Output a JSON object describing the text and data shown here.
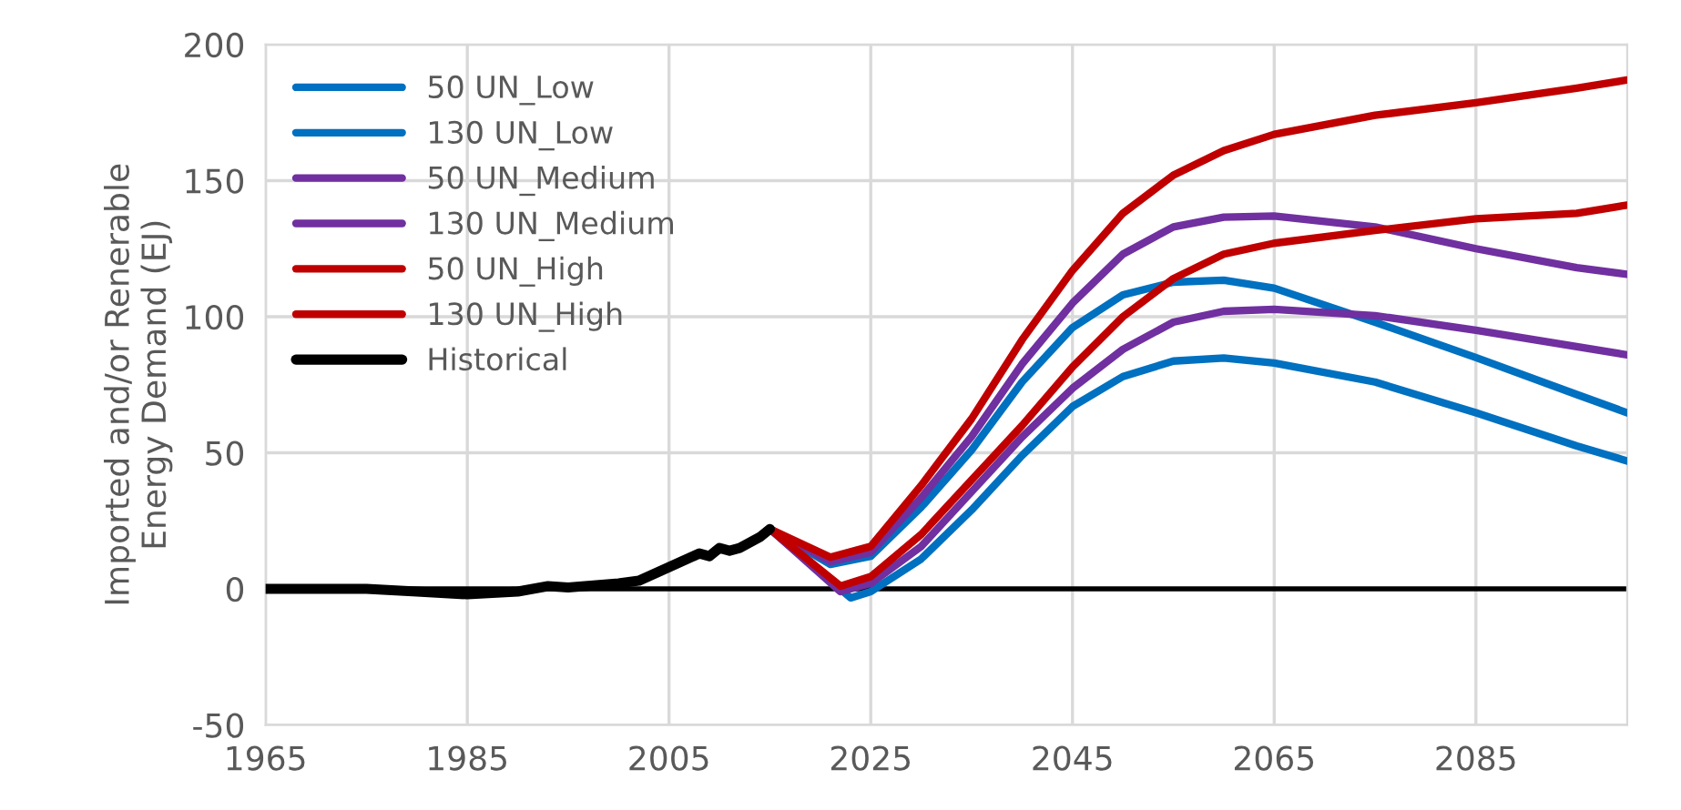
{
  "chart_data": {
    "type": "line",
    "ylabel": "Imported and/or Renerable\nEnergy Demand (EJ)",
    "xlim": [
      1965,
      2100
    ],
    "xticks": [
      1965,
      1985,
      2005,
      2025,
      2045,
      2065,
      2085
    ],
    "ylim": [
      -50,
      200
    ],
    "yticks": [
      -50,
      0,
      50,
      100,
      150,
      200
    ],
    "grid": true,
    "legend": "top left",
    "marker": "none",
    "line_style": "solid",
    "ref_lines": [
      {
        "axis": "y",
        "value": 0,
        "color": "#000000"
      }
    ],
    "series": [
      {
        "name": "50 UN_Low",
        "color": "#0070c0",
        "x": [
          2015,
          2021,
          2025,
          2030,
          2035,
          2040,
          2045,
          2050,
          2055,
          2060,
          2065,
          2075,
          2085,
          2095,
          2100
        ],
        "values": [
          22,
          9,
          12,
          30,
          51,
          76,
          96,
          108,
          112.7,
          113.4,
          110.5,
          98,
          85,
          71.4,
          64.7
        ]
      },
      {
        "name": "130 UN_Low",
        "color": "#0070c0",
        "x": [
          2015,
          2023,
          2025,
          2030,
          2035,
          2040,
          2045,
          2050,
          2055,
          2060,
          2065,
          2075,
          2085,
          2095,
          2100
        ],
        "values": [
          22,
          -3.3,
          -1,
          11,
          29,
          49,
          67,
          78,
          83.7,
          84.8,
          83,
          76,
          64.7,
          52.5,
          47
        ]
      },
      {
        "name": "50 UN_Medium",
        "color": "#7030a0",
        "x": [
          2015,
          2021,
          2025,
          2030,
          2035,
          2040,
          2045,
          2050,
          2055,
          2060,
          2065,
          2075,
          2085,
          2095,
          2100
        ],
        "values": [
          22,
          10,
          13.4,
          33.5,
          56,
          82.6,
          105,
          123,
          133,
          136.6,
          137,
          133,
          125,
          118,
          115.6
        ]
      },
      {
        "name": "130 UN_Medium",
        "color": "#7030a0",
        "x": [
          2015,
          2022,
          2025,
          2030,
          2035,
          2040,
          2045,
          2050,
          2055,
          2060,
          2065,
          2075,
          2085,
          2095,
          2100
        ],
        "values": [
          22,
          -1,
          2,
          15.6,
          35.7,
          55.8,
          73.7,
          88,
          98,
          102,
          102.7,
          100.4,
          95,
          89,
          86
        ]
      },
      {
        "name": "50 UN_High",
        "color": "#c00000",
        "x": [
          2015,
          2021,
          2025,
          2030,
          2035,
          2040,
          2045,
          2050,
          2055,
          2060,
          2065,
          2075,
          2085,
          2095,
          2100
        ],
        "values": [
          22,
          11.6,
          15.6,
          38,
          62.5,
          91.5,
          117,
          138,
          152,
          161,
          167,
          174,
          178.6,
          184,
          187
        ]
      },
      {
        "name": "130 UN_High",
        "color": "#c00000",
        "x": [
          2015,
          2022,
          2025,
          2030,
          2035,
          2040,
          2045,
          2050,
          2055,
          2060,
          2065,
          2075,
          2085,
          2095,
          2100
        ],
        "values": [
          22,
          1,
          4.5,
          20,
          40,
          60,
          81.5,
          100,
          114,
          123,
          127,
          131.7,
          136,
          138,
          141
        ]
      },
      {
        "name": "Historical",
        "color": "#000000",
        "x": [
          1965,
          1970,
          1975,
          1980,
          1985,
          1990,
          1993,
          1995,
          2000,
          2002,
          2005,
          2008,
          2009,
          2010,
          2011,
          2012,
          2014,
          2015
        ],
        "values": [
          0,
          0,
          0,
          -1,
          -2,
          -1,
          1,
          0.5,
          2,
          3,
          8,
          13,
          12,
          15,
          14,
          15,
          19,
          22
        ]
      }
    ]
  }
}
